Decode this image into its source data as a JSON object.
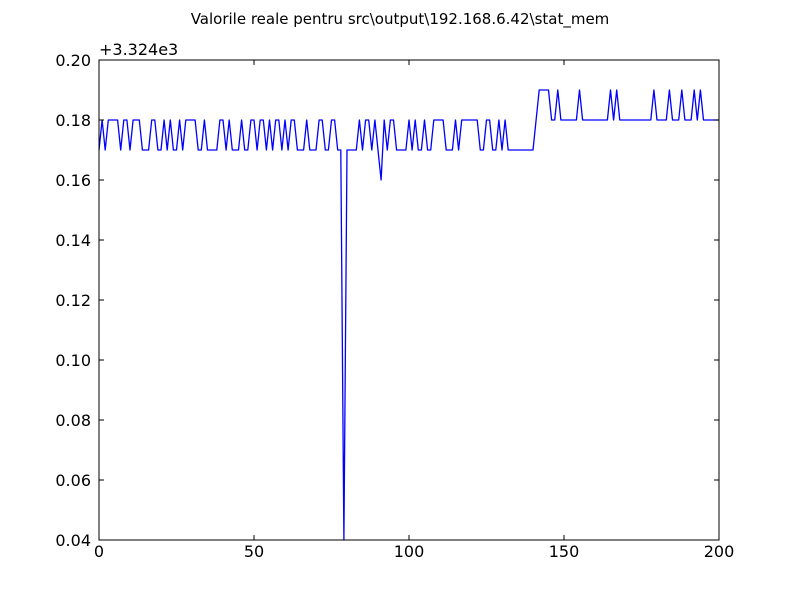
{
  "chart_data": {
    "type": "line",
    "title": "Valorile reale pentru src\\output\\192.168.6.42\\stat_mem",
    "xlabel": "",
    "ylabel": "",
    "offset_label": "+3.324e3",
    "xlim": [
      0,
      200
    ],
    "ylim": [
      0.04,
      0.2
    ],
    "x_ticks": [
      0,
      50,
      100,
      150,
      200
    ],
    "x_tick_labels": [
      "0",
      "50",
      "100",
      "150",
      "200"
    ],
    "y_ticks": [
      0.04,
      0.06,
      0.08,
      0.1,
      0.12,
      0.14,
      0.16,
      0.18,
      0.2
    ],
    "y_tick_labels": [
      "0.04",
      "0.06",
      "0.08",
      "0.10",
      "0.12",
      "0.14",
      "0.16",
      "0.18",
      "0.20"
    ],
    "grid": false,
    "line_color": "#0000ff",
    "series": [
      {
        "values": [
          0.17,
          0.18,
          0.17,
          0.18,
          0.18,
          0.18,
          0.18,
          0.17,
          0.18,
          0.18,
          0.17,
          0.18,
          0.18,
          0.18,
          0.17,
          0.17,
          0.17,
          0.18,
          0.18,
          0.17,
          0.17,
          0.18,
          0.17,
          0.18,
          0.17,
          0.17,
          0.18,
          0.17,
          0.18,
          0.18,
          0.18,
          0.18,
          0.17,
          0.17,
          0.18,
          0.17,
          0.17,
          0.17,
          0.17,
          0.18,
          0.18,
          0.17,
          0.18,
          0.17,
          0.17,
          0.17,
          0.18,
          0.17,
          0.17,
          0.18,
          0.18,
          0.17,
          0.18,
          0.18,
          0.17,
          0.18,
          0.17,
          0.18,
          0.18,
          0.17,
          0.18,
          0.17,
          0.18,
          0.18,
          0.17,
          0.17,
          0.17,
          0.18,
          0.17,
          0.17,
          0.17,
          0.18,
          0.18,
          0.17,
          0.17,
          0.18,
          0.18,
          0.17,
          0.17,
          0.04,
          0.17,
          0.17,
          0.17,
          0.17,
          0.18,
          0.17,
          0.18,
          0.18,
          0.17,
          0.18,
          0.17,
          0.16,
          0.18,
          0.17,
          0.18,
          0.18,
          0.17,
          0.17,
          0.17,
          0.17,
          0.18,
          0.17,
          0.18,
          0.17,
          0.17,
          0.18,
          0.17,
          0.17,
          0.18,
          0.18,
          0.18,
          0.18,
          0.17,
          0.17,
          0.17,
          0.18,
          0.17,
          0.18,
          0.18,
          0.18,
          0.18,
          0.18,
          0.18,
          0.17,
          0.17,
          0.18,
          0.18,
          0.17,
          0.17,
          0.18,
          0.17,
          0.18,
          0.17,
          0.17,
          0.17,
          0.17,
          0.17,
          0.17,
          0.17,
          0.17,
          0.17,
          0.18,
          0.19,
          0.19,
          0.19,
          0.19,
          0.18,
          0.18,
          0.19,
          0.18,
          0.18,
          0.18,
          0.18,
          0.18,
          0.18,
          0.19,
          0.18,
          0.18,
          0.18,
          0.18,
          0.18,
          0.18,
          0.18,
          0.18,
          0.18,
          0.19,
          0.18,
          0.19,
          0.18,
          0.18,
          0.18,
          0.18,
          0.18,
          0.18,
          0.18,
          0.18,
          0.18,
          0.18,
          0.18,
          0.19,
          0.18,
          0.18,
          0.18,
          0.18,
          0.19,
          0.18,
          0.18,
          0.18,
          0.19,
          0.18,
          0.18,
          0.18,
          0.19,
          0.18,
          0.19,
          0.18,
          0.18,
          0.18,
          0.18,
          0.18,
          0.18
        ]
      }
    ]
  }
}
